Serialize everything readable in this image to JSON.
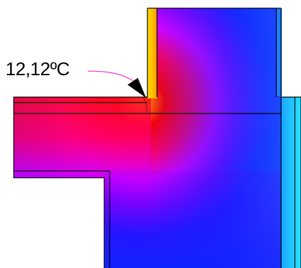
{
  "annotation": {
    "temperature_label": "12,12ºC"
  },
  "colors": {
    "cold": "#00c8ff",
    "mid_cold": "#1a1aff",
    "mid": "#ff00ff",
    "warm": "#ff0000",
    "hot": "#ffd400",
    "outline": "#000000",
    "leader_line": "#ff33cc"
  }
}
